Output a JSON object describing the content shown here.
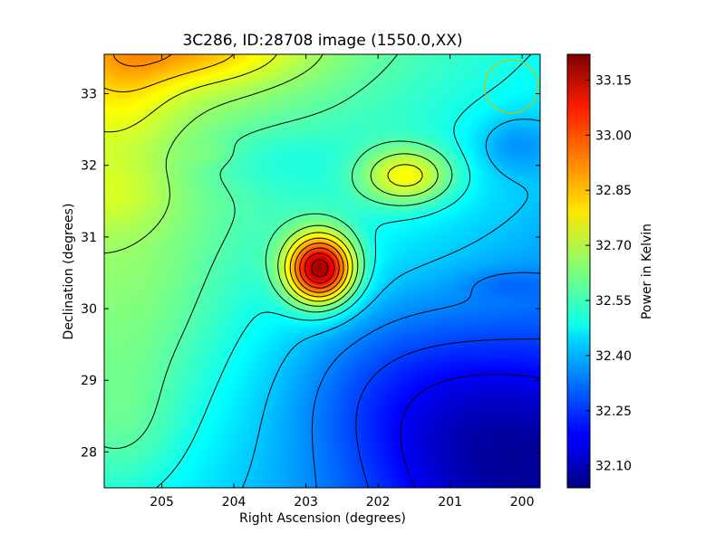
{
  "chart_data": {
    "type": "heatmap",
    "title": "3C286, ID:28708 image (1550.0,XX)",
    "xlabel": "Right Ascension (degrees)",
    "ylabel": "Declination (degrees)",
    "colorbar_label": "Power in Kelvin",
    "x_reversed": true,
    "xlim": [
      205.8,
      199.75
    ],
    "ylim": [
      27.5,
      33.55
    ],
    "x_ticks": [
      205,
      204,
      203,
      202,
      201,
      200
    ],
    "y_ticks": [
      28,
      29,
      30,
      31,
      32,
      33
    ],
    "colorbar_range": [
      32.04,
      33.22
    ],
    "colorbar_ticks": [
      "32.10",
      "32.25",
      "32.40",
      "32.55",
      "32.70",
      "32.85",
      "33.00",
      "33.15"
    ],
    "colormap": "jet",
    "contour_levels": [
      32.18,
      32.26,
      32.34,
      32.42,
      32.5,
      32.58,
      32.66,
      32.74,
      32.82,
      32.9,
      32.98,
      33.06,
      33.14,
      33.22
    ],
    "peak": {
      "ra": 202.8,
      "dec": 30.55,
      "value": 33.19
    },
    "secondary_peak": {
      "ra": 201.6,
      "dec": 31.85,
      "value": 32.86
    },
    "beam": {
      "ra": 200.15,
      "dec": 33.1,
      "radius_deg": 0.37,
      "color": "#ccc000"
    }
  }
}
